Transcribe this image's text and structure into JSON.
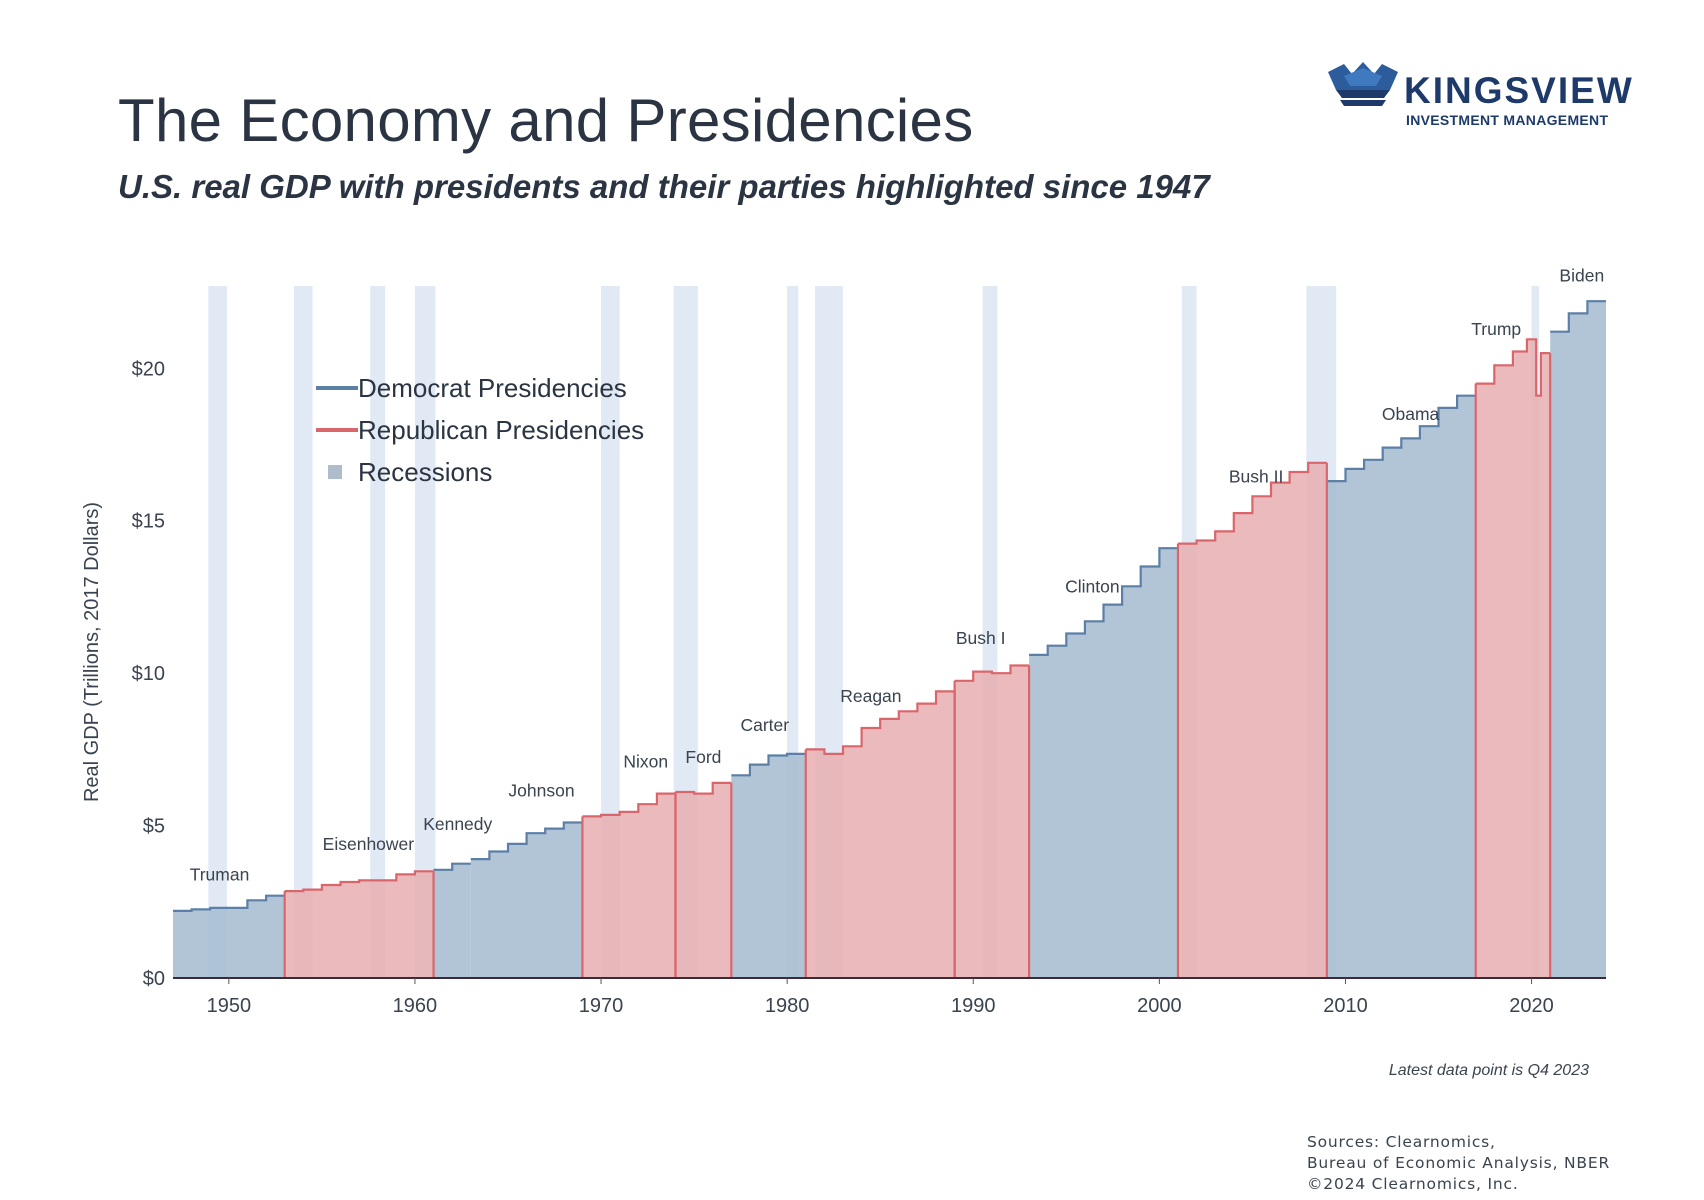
{
  "header": {
    "title": "The Economy and Presidencies",
    "subtitle": "U.S. real GDP with presidents and their parties highlighted since 1947"
  },
  "logo": {
    "name": "KINGSVIEW",
    "tagline": "INVESTMENT MANAGEMENT",
    "color": "#1d3a6b"
  },
  "footer": {
    "note": "Latest data point is Q4 2023",
    "sources": [
      "Sources: Clearnomics,",
      "Bureau of Economic Analysis, NBER",
      "©2024 Clearnomics, Inc."
    ]
  },
  "chart_data": {
    "type": "area",
    "title": "The Economy and Presidencies",
    "ylabel": "Real GDP (Trillions, 2017 Dollars)",
    "xlabel": "",
    "xlim": [
      1947,
      2024
    ],
    "ylim": [
      0,
      22.7
    ],
    "x_ticks": [
      1950,
      1960,
      1970,
      1980,
      1990,
      2000,
      2010,
      2020
    ],
    "x_tick_labels": [
      "1950",
      "1960",
      "1970",
      "1980",
      "1990",
      "2000",
      "2010",
      "2020"
    ],
    "y_ticks": [
      0,
      5,
      10,
      15,
      20
    ],
    "y_tick_labels": [
      "$0",
      "$5",
      "$10",
      "$15",
      "$20"
    ],
    "grid": false,
    "legend_position": "top-left",
    "legend": [
      {
        "label": "Democrat Presidencies",
        "kind": "line",
        "color": "#5b7fa6"
      },
      {
        "label": "Republican Presidencies",
        "kind": "line",
        "color": "#d9666b"
      },
      {
        "label": "Recessions",
        "kind": "square",
        "color": "#aebccc"
      }
    ],
    "colors": {
      "democrat_fill": "#a9bfd2",
      "democrat_line": "#5b7fa6",
      "republican_fill": "#e8b3b5",
      "republican_line": "#d9666b",
      "recession": "#dce5f3",
      "axis": "#3a2a3a"
    },
    "gdp_series": {
      "name": "Real GDP",
      "x": [
        1947,
        1948,
        1949,
        1950,
        1951,
        1952,
        1953,
        1954,
        1955,
        1956,
        1957,
        1958,
        1959,
        1960,
        1961,
        1962,
        1963,
        1964,
        1965,
        1966,
        1967,
        1968,
        1969,
        1970,
        1971,
        1972,
        1973,
        1974,
        1975,
        1976,
        1977,
        1978,
        1979,
        1980,
        1981,
        1982,
        1983,
        1984,
        1985,
        1986,
        1987,
        1988,
        1989,
        1990,
        1991,
        1992,
        1993,
        1994,
        1995,
        1996,
        1997,
        1998,
        1999,
        2000,
        2001,
        2002,
        2003,
        2004,
        2005,
        2006,
        2007,
        2008,
        2009,
        2010,
        2011,
        2012,
        2013,
        2014,
        2015,
        2016,
        2017,
        2018,
        2019,
        2019.75,
        2020.25,
        2020.5,
        2021,
        2022,
        2023,
        2024
      ],
      "y": [
        2.2,
        2.25,
        2.3,
        2.3,
        2.55,
        2.7,
        2.85,
        2.9,
        3.05,
        3.15,
        3.2,
        3.2,
        3.4,
        3.5,
        3.55,
        3.75,
        3.9,
        4.15,
        4.4,
        4.75,
        4.9,
        5.1,
        5.3,
        5.35,
        5.45,
        5.7,
        6.05,
        6.1,
        6.05,
        6.4,
        6.65,
        7.0,
        7.3,
        7.35,
        7.5,
        7.35,
        7.6,
        8.2,
        8.5,
        8.75,
        9.0,
        9.4,
        9.75,
        10.05,
        10.0,
        10.25,
        10.6,
        10.9,
        11.3,
        11.7,
        12.25,
        12.85,
        13.5,
        14.1,
        14.25,
        14.35,
        14.65,
        15.25,
        15.8,
        16.25,
        16.6,
        16.9,
        16.3,
        16.7,
        17.0,
        17.4,
        17.7,
        18.1,
        18.7,
        19.1,
        19.5,
        20.1,
        20.55,
        20.95,
        19.1,
        20.5,
        21.2,
        21.8,
        22.2,
        22.7
      ]
    },
    "presidencies": [
      {
        "name": "Truman",
        "party": "D",
        "start": 1947,
        "end": 1953
      },
      {
        "name": "Eisenhower",
        "party": "R",
        "start": 1953,
        "end": 1961
      },
      {
        "name": "Kennedy",
        "party": "D",
        "start": 1961,
        "end": 1963
      },
      {
        "name": "Johnson",
        "party": "D",
        "start": 1963,
        "end": 1969
      },
      {
        "name": "Nixon",
        "party": "R",
        "start": 1969,
        "end": 1974
      },
      {
        "name": "Ford",
        "party": "R",
        "start": 1974,
        "end": 1977
      },
      {
        "name": "Carter",
        "party": "D",
        "start": 1977,
        "end": 1981
      },
      {
        "name": "Reagan",
        "party": "R",
        "start": 1981,
        "end": 1989
      },
      {
        "name": "Bush I",
        "party": "R",
        "start": 1989,
        "end": 1993
      },
      {
        "name": "Clinton",
        "party": "D",
        "start": 1993,
        "end": 2001
      },
      {
        "name": "Bush II",
        "party": "R",
        "start": 2001,
        "end": 2009
      },
      {
        "name": "Obama",
        "party": "D",
        "start": 2009,
        "end": 2017
      },
      {
        "name": "Trump",
        "party": "R",
        "start": 2017,
        "end": 2021
      },
      {
        "name": "Biden",
        "party": "D",
        "start": 2021,
        "end": 2024
      }
    ],
    "president_labels": [
      {
        "text": "Truman",
        "x": 1949.5,
        "y": 3.2
      },
      {
        "text": "Eisenhower",
        "x": 1957.5,
        "y": 4.2
      },
      {
        "text": "Kennedy",
        "x": 1962.3,
        "y": 4.85
      },
      {
        "text": "Johnson",
        "x": 1966.8,
        "y": 5.95
      },
      {
        "text": "Nixon",
        "x": 1972.4,
        "y": 6.9
      },
      {
        "text": "Ford",
        "x": 1975.5,
        "y": 7.05
      },
      {
        "text": "Carter",
        "x": 1978.8,
        "y": 8.1
      },
      {
        "text": "Reagan",
        "x": 1984.5,
        "y": 9.05
      },
      {
        "text": "Bush I",
        "x": 1990.4,
        "y": 10.95
      },
      {
        "text": "Clinton",
        "x": 1996.4,
        "y": 12.65
      },
      {
        "text": "Bush II",
        "x": 2005.2,
        "y": 16.25
      },
      {
        "text": "Obama",
        "x": 2013.5,
        "y": 18.3
      },
      {
        "text": "Trump",
        "x": 2018.1,
        "y": 21.1
      },
      {
        "text": "Biden",
        "x": 2022.7,
        "y": 22.85
      }
    ],
    "recessions": [
      [
        1948.9,
        1949.9
      ],
      [
        1953.5,
        1954.5
      ],
      [
        1957.6,
        1958.4
      ],
      [
        1960.0,
        1961.1
      ],
      [
        1970.0,
        1971.0
      ],
      [
        1973.9,
        1975.2
      ],
      [
        1980.0,
        1980.6
      ],
      [
        1981.5,
        1983.0
      ],
      [
        1990.5,
        1991.3
      ],
      [
        2001.2,
        2002.0
      ],
      [
        2007.9,
        2009.5
      ],
      [
        2020.0,
        2020.4
      ]
    ]
  }
}
